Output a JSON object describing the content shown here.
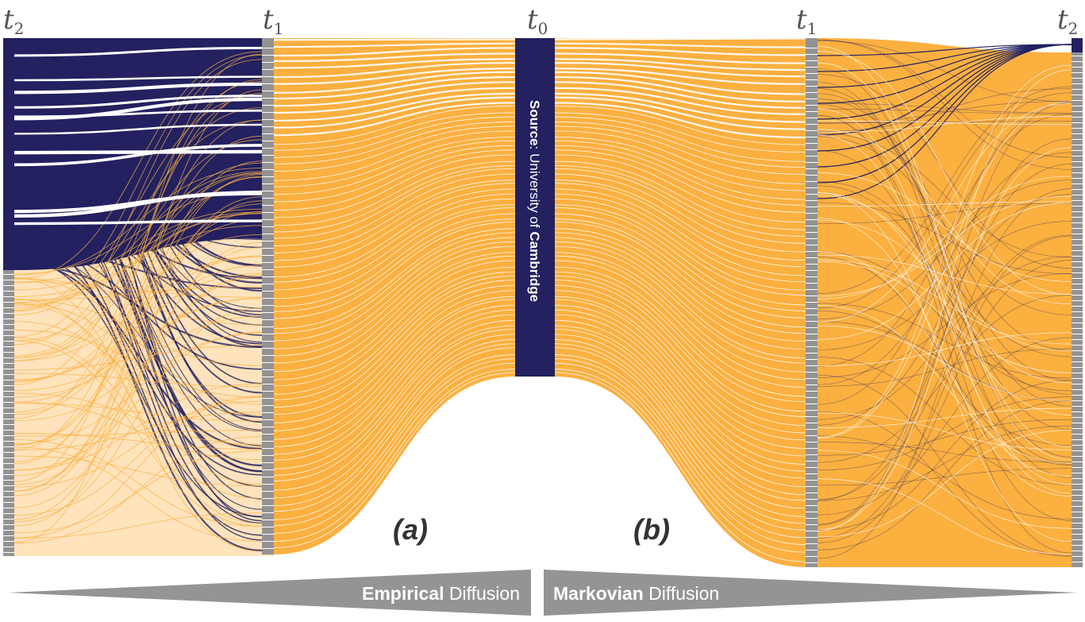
{
  "colors": {
    "source": "#232160",
    "diffused": "#FBB040",
    "node": "#939393",
    "banner": "#949494",
    "background": "#ffffff"
  },
  "labels": {
    "t2_left_base": "t",
    "t2_left_sub": "2",
    "t1_left_base": "t",
    "t1_left_sub": "1",
    "t0_base": "t",
    "t0_sub": "0",
    "t1_right_base": "t",
    "t1_right_sub": "1",
    "t2_right_base": "t",
    "t2_right_sub": "2"
  },
  "source": {
    "prefix": "Source",
    "middle": ": University of ",
    "name": "Cambridge"
  },
  "panels": {
    "a": "(a)",
    "b": "(b)"
  },
  "banners": {
    "left_strong": "Empirical",
    "left_rest": " Diffusion",
    "right_strong": "Markovian",
    "right_rest": " Diffusion"
  }
}
